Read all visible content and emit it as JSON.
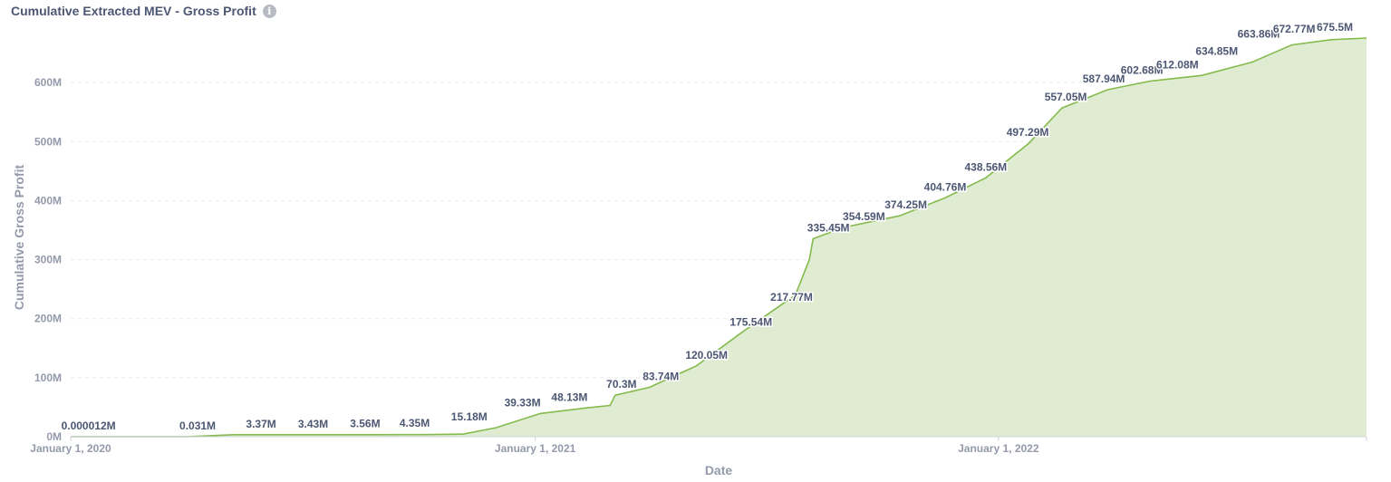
{
  "header": {
    "title": "Cumulative Extracted MEV - Gross Profit",
    "info_icon": "info-icon"
  },
  "colors": {
    "line": "#84bb4c",
    "area": "#e0ecd2",
    "axis": "#cfd3da",
    "text": "#4c5773",
    "muted": "#949aab"
  },
  "chart_data": {
    "type": "area",
    "title": "Cumulative Extracted MEV - Gross Profit",
    "xlabel": "Date",
    "ylabel": "Cumulative Gross Profit",
    "x_range": [
      "2020-01-01",
      "2022-10-18"
    ],
    "ylim": [
      0,
      675500000
    ],
    "y_ticks": [
      {
        "value": 0,
        "label": "0M"
      },
      {
        "value": 100000000,
        "label": "100M"
      },
      {
        "value": 200000000,
        "label": "200M"
      },
      {
        "value": 300000000,
        "label": "300M"
      },
      {
        "value": 400000000,
        "label": "400M"
      },
      {
        "value": 500000000,
        "label": "500M"
      },
      {
        "value": 600000000,
        "label": "600M"
      }
    ],
    "x_ticks": [
      {
        "value": "2020-01-01",
        "label": "January 1, 2020"
      },
      {
        "value": "2021-01-01",
        "label": "January 1, 2021"
      },
      {
        "value": "2022-01-01",
        "label": "January 1, 2022"
      }
    ],
    "grid": "horizontal dashed",
    "legend": "none",
    "series": [
      {
        "points": [
          [
            "2020-01-01",
            12
          ],
          [
            "2020-04-01",
            31000
          ],
          [
            "2020-05-08",
            3370000
          ],
          [
            "2020-08-01",
            3430000
          ],
          [
            "2020-10-05",
            3560000
          ],
          [
            "2020-11-05",
            4350000
          ],
          [
            "2020-12-01",
            15180000
          ],
          [
            "2021-01-05",
            39330000
          ],
          [
            "2021-02-08",
            48130000
          ],
          [
            "2021-03-01",
            53000000
          ],
          [
            "2021-03-05",
            70300000
          ],
          [
            "2021-04-01",
            83740000
          ],
          [
            "2021-05-08",
            120050000
          ],
          [
            "2021-06-12",
            175540000
          ],
          [
            "2021-07-10",
            217770000
          ],
          [
            "2021-07-25",
            240000000
          ],
          [
            "2021-08-05",
            300000000
          ],
          [
            "2021-08-08",
            335450000
          ],
          [
            "2021-09-01",
            354590000
          ],
          [
            "2021-10-15",
            374250000
          ],
          [
            "2021-11-20",
            404760000
          ],
          [
            "2021-12-22",
            438560000
          ],
          [
            "2022-01-25",
            497290000
          ],
          [
            "2022-02-20",
            557050000
          ],
          [
            "2022-03-28",
            587940000
          ],
          [
            "2022-05-01",
            602680000
          ],
          [
            "2022-06-10",
            612080000
          ],
          [
            "2022-07-20",
            634850000
          ],
          [
            "2022-08-20",
            663860000
          ],
          [
            "2022-09-20",
            672770000
          ],
          [
            "2022-10-18",
            675500000
          ]
        ],
        "data_labels": [
          {
            "x": "2020-01-15",
            "value": 12,
            "text": "0.000012M"
          },
          {
            "x": "2020-04-10",
            "value": 31000,
            "text": "0.031M"
          },
          {
            "x": "2020-05-30",
            "value": 3370000,
            "text": "3.37M"
          },
          {
            "x": "2020-07-10",
            "value": 3430000,
            "text": "3.43M"
          },
          {
            "x": "2020-08-20",
            "value": 3560000,
            "text": "3.56M"
          },
          {
            "x": "2020-09-28",
            "value": 4350000,
            "text": "4.35M"
          },
          {
            "x": "2020-11-10",
            "value": 15180000,
            "text": "15.18M"
          },
          {
            "x": "2020-12-22",
            "value": 39330000,
            "text": "39.33M"
          },
          {
            "x": "2021-01-28",
            "value": 48130000,
            "text": "48.13M"
          },
          {
            "x": "2021-03-10",
            "value": 70300000,
            "text": "70.3M"
          },
          {
            "x": "2021-04-10",
            "value": 83740000,
            "text": "83.74M"
          },
          {
            "x": "2021-05-16",
            "value": 120050000,
            "text": "120.05M"
          },
          {
            "x": "2021-06-20",
            "value": 175540000,
            "text": "175.54M"
          },
          {
            "x": "2021-07-22",
            "value": 217770000,
            "text": "217.77M"
          },
          {
            "x": "2021-08-20",
            "value": 335450000,
            "text": "335.45M"
          },
          {
            "x": "2021-09-17",
            "value": 354590000,
            "text": "354.59M"
          },
          {
            "x": "2021-10-20",
            "value": 374250000,
            "text": "374.25M"
          },
          {
            "x": "2021-11-20",
            "value": 404760000,
            "text": "404.76M"
          },
          {
            "x": "2021-12-22",
            "value": 438560000,
            "text": "438.56M"
          },
          {
            "x": "2022-01-24",
            "value": 497290000,
            "text": "497.29M"
          },
          {
            "x": "2022-02-23",
            "value": 557050000,
            "text": "557.05M"
          },
          {
            "x": "2022-03-25",
            "value": 587940000,
            "text": "587.94M"
          },
          {
            "x": "2022-04-24",
            "value": 602680000,
            "text": "602.68M"
          },
          {
            "x": "2022-05-22",
            "value": 612080000,
            "text": "612.08M"
          },
          {
            "x": "2022-06-22",
            "value": 634850000,
            "text": "634.85M"
          },
          {
            "x": "2022-07-25",
            "value": 663860000,
            "text": "663.86M"
          },
          {
            "x": "2022-08-22",
            "value": 672770000,
            "text": "672.77M"
          },
          {
            "x": "2022-09-23",
            "value": 675500000,
            "text": "675.5M"
          }
        ]
      }
    ]
  }
}
